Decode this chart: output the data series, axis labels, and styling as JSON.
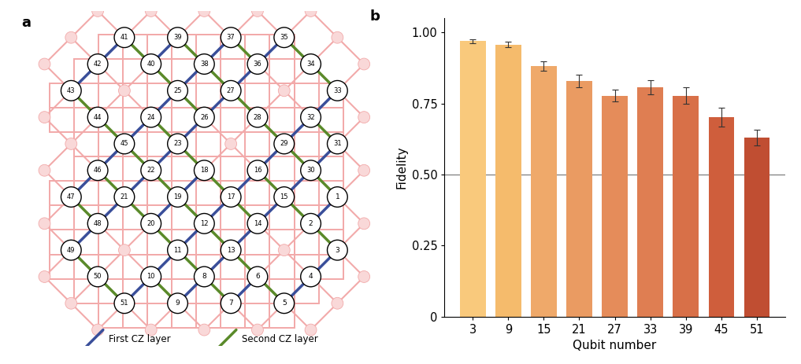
{
  "bar_categories": [
    3,
    9,
    15,
    21,
    27,
    33,
    39,
    45,
    51
  ],
  "bar_values": [
    0.97,
    0.957,
    0.882,
    0.83,
    0.778,
    0.808,
    0.778,
    0.703,
    0.63
  ],
  "bar_errors_lo": [
    0.007,
    0.01,
    0.016,
    0.022,
    0.022,
    0.025,
    0.028,
    0.033,
    0.028
  ],
  "bar_errors_hi": [
    0.007,
    0.01,
    0.016,
    0.022,
    0.022,
    0.025,
    0.028,
    0.033,
    0.028
  ],
  "bar_colors": [
    "#F9C97C",
    "#F5BB6C",
    "#EFA96A",
    "#EA9B62",
    "#E58C5A",
    "#DF7E52",
    "#D87048",
    "#CF5E3C",
    "#C04E32"
  ],
  "ylabel": "Fidelity",
  "xlabel": "Qubit number",
  "hline_y": 0.5,
  "hline_color": "#888888",
  "ylim": [
    0,
    1.05
  ],
  "yticks": [
    0,
    0.25,
    0.5,
    0.75,
    1.0
  ],
  "panel_b_label": "b",
  "panel_a_label": "a",
  "first_cz_color": "#3A4F9A",
  "second_cz_color": "#5A8A2A",
  "pink_line_color": "#F2AAAA",
  "pink_node_fill": "#F9D8D8",
  "pink_node_edge": "#F2AAAA"
}
